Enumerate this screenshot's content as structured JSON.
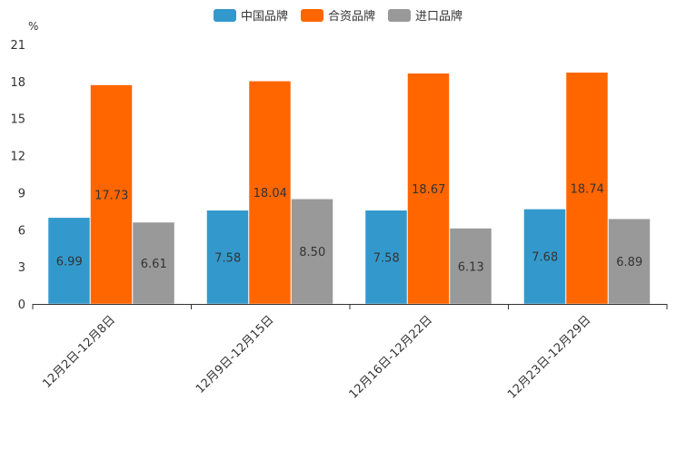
{
  "chart_data": {
    "type": "bar",
    "title": "",
    "xlabel": "",
    "ylabel": "%",
    "ylim": [
      0,
      21
    ],
    "yticks": [
      0,
      3,
      6,
      9,
      12,
      15,
      18,
      21
    ],
    "grid": false,
    "legend_position": "top-center",
    "categories": [
      "12月2日-12月8日",
      "12月9日-12月15日",
      "12月16日-12月22日",
      "12月23日-12月29日"
    ],
    "series": [
      {
        "name": "中国品牌",
        "color": "#3399cc",
        "values": [
          6.99,
          7.58,
          7.58,
          7.68
        ],
        "labels": [
          "6.99",
          "7.58",
          "7.58",
          "7.68"
        ]
      },
      {
        "name": "合资品牌",
        "color": "#ff6600",
        "values": [
          17.73,
          18.04,
          18.67,
          18.74
        ],
        "labels": [
          "17.73",
          "18.04",
          "18.67",
          "18.74"
        ]
      },
      {
        "name": "进口品牌",
        "color": "#999999",
        "values": [
          6.61,
          8.5,
          6.13,
          6.89
        ],
        "labels": [
          "6.61",
          "8.50",
          "6.13",
          "6.89"
        ]
      }
    ]
  }
}
